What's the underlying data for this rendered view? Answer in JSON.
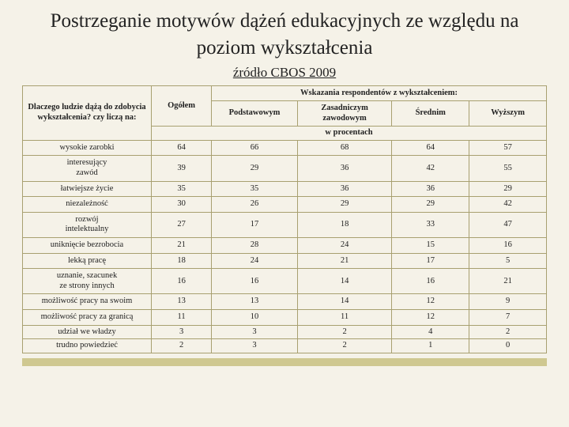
{
  "title_line": "Postrzeganie motywów dążeń edukacyjnych ze względu na poziom wykształcenia",
  "subtitle": "źródło CBOS 2009",
  "headers": {
    "question": "Dlaczego ludzie dążą do zdobycia wykształcenia? czy liczą na:",
    "overall": "Ogółem",
    "resp_header": "Wskazania respondentów z wykształceniem:",
    "cols": {
      "c1": "Podstawowym",
      "c2": "Zasadniczym zawodowym",
      "c3": "Średnim",
      "c4": "Wyższym"
    },
    "unit": "w procentach"
  },
  "rows": [
    {
      "label": "wysokie zarobki",
      "v": [
        "64",
        "66",
        "68",
        "64",
        "57"
      ]
    },
    {
      "label": "interesujący zawód",
      "v": [
        "39",
        "29",
        "36",
        "42",
        "55"
      ]
    },
    {
      "label": "łatwiejsze życie",
      "v": [
        "35",
        "35",
        "36",
        "36",
        "29"
      ]
    },
    {
      "label": "niezależność",
      "v": [
        "30",
        "26",
        "29",
        "29",
        "42"
      ]
    },
    {
      "label": "rozwój intelektualny",
      "v": [
        "27",
        "17",
        "18",
        "33",
        "47"
      ]
    },
    {
      "label": "uniknięcie bezrobocia",
      "v": [
        "21",
        "28",
        "24",
        "15",
        "16"
      ]
    },
    {
      "label": "lekką pracę",
      "v": [
        "18",
        "24",
        "21",
        "17",
        "5"
      ]
    },
    {
      "label": "uznanie, szacunek ze strony innych",
      "v": [
        "16",
        "16",
        "14",
        "16",
        "21"
      ]
    },
    {
      "label": "możliwość pracy na swoim",
      "v": [
        "13",
        "13",
        "14",
        "12",
        "9"
      ]
    },
    {
      "label": "możliwość pracy za granicą",
      "v": [
        "11",
        "10",
        "11",
        "12",
        "7"
      ]
    },
    {
      "label": "udział we władzy",
      "v": [
        "3",
        "3",
        "2",
        "4",
        "2"
      ]
    },
    {
      "label": "trudno powiedzieć",
      "v": [
        "2",
        "3",
        "2",
        "1",
        "0"
      ]
    }
  ],
  "colors": {
    "border": "#a8a070",
    "bg": "#f5f2e8",
    "footer": "#cfc890"
  }
}
